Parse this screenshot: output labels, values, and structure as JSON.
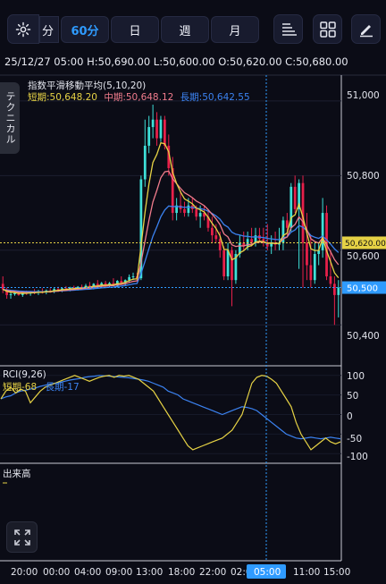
{
  "toolbar": {
    "timeframes": [
      {
        "label": "分",
        "selected": false
      },
      {
        "label": "60分",
        "selected": true
      },
      {
        "label": "日",
        "selected": false
      },
      {
        "label": "週",
        "selected": false
      },
      {
        "label": "月",
        "selected": false
      }
    ],
    "settings_icon": "gear-icon",
    "indicator_icon": "indicator-lines-icon",
    "layout_icon": "grid-layout-icon",
    "draw_icon": "pencil-icon"
  },
  "header": {
    "ohlc": "25/12/27 05:00  H:50,690.00  L:50,600.00  O:50,620.00  C:50,680.00"
  },
  "side_tab": {
    "label": "テクニカル"
  },
  "ma_panel": {
    "title": "指数平滑移動平均(5,10,20)",
    "short": "短期:50,648.20",
    "mid": "中期:50,648.12",
    "long": "長期:50,642.55"
  },
  "rci_panel": {
    "title": "RCI(9,26)",
    "short": "短期-68",
    "long": "長期-17"
  },
  "volume_panel": {
    "title": "出来高"
  },
  "colors": {
    "up": "#3ee0d8",
    "down": "#e8204a",
    "ema_short": "#e6d245",
    "ema_mid": "#f07c8c",
    "ema_long": "#3b82f0",
    "rci_short": "#e6d245",
    "rci_long": "#3b82f0",
    "price_line": "#e6d245",
    "crosshair": "#2f9bff"
  },
  "chart_data": {
    "type": "candlestick",
    "price_axis": {
      "labels": [
        "51,000",
        "50,800",
        "50,600",
        "50,400"
      ],
      "range": [
        50300,
        51050
      ]
    },
    "current_price_label": "50,620.00",
    "crosshair_price_label": "50,500",
    "rci_axis": {
      "labels": [
        "100",
        "50",
        "0",
        "-50",
        "-100"
      ],
      "range": [
        -120,
        120
      ]
    },
    "time_axis": [
      "20:00",
      "00:00",
      "04:00",
      "09:00",
      "13:00",
      "18:00",
      "22:00",
      "02:0",
      "05:00",
      "11:00",
      "15:00"
    ],
    "crosshair_time": "05:00",
    "candles": [
      [
        50510,
        50530,
        50485,
        50495
      ],
      [
        50495,
        50500,
        50470,
        50480
      ],
      [
        50480,
        50490,
        50470,
        50482
      ],
      [
        50482,
        50490,
        50478,
        50485
      ],
      [
        50485,
        50492,
        50478,
        50480
      ],
      [
        50480,
        50488,
        50475,
        50486
      ],
      [
        50486,
        50492,
        50480,
        50484
      ],
      [
        50484,
        50490,
        50478,
        50488
      ],
      [
        50488,
        50496,
        50482,
        50486
      ],
      [
        50486,
        50494,
        50480,
        50490
      ],
      [
        50490,
        50498,
        50484,
        50488
      ],
      [
        50488,
        50495,
        50482,
        50492
      ],
      [
        50492,
        50498,
        50486,
        50490
      ],
      [
        50490,
        50500,
        50485,
        50496
      ],
      [
        50496,
        50502,
        50488,
        50494
      ],
      [
        50494,
        50500,
        50488,
        50498
      ],
      [
        50498,
        50504,
        50492,
        50496
      ],
      [
        50496,
        50502,
        50490,
        50500
      ],
      [
        50500,
        50505,
        50494,
        50498
      ],
      [
        50498,
        50504,
        50492,
        50502
      ],
      [
        50502,
        50508,
        50496,
        50500
      ],
      [
        50500,
        50510,
        50495,
        50505
      ],
      [
        50505,
        50515,
        50498,
        50500
      ],
      [
        50500,
        50512,
        50495,
        50510
      ],
      [
        50510,
        50520,
        50500,
        50505
      ],
      [
        50505,
        50515,
        50500,
        50512
      ],
      [
        50512,
        50518,
        50502,
        50505
      ],
      [
        50505,
        50515,
        50500,
        50512
      ],
      [
        50512,
        50525,
        50505,
        50505
      ],
      [
        50505,
        50520,
        50500,
        50518
      ],
      [
        50518,
        50530,
        50510,
        50512
      ],
      [
        50512,
        50522,
        50505,
        50520
      ],
      [
        50520,
        50535,
        50512,
        50528
      ],
      [
        50528,
        50540,
        50520,
        50530
      ],
      [
        50530,
        50540,
        50520,
        50525
      ],
      [
        50525,
        50800,
        50520,
        50790
      ],
      [
        50790,
        50950,
        50770,
        50880
      ],
      [
        50880,
        50960,
        50860,
        50930
      ],
      [
        50930,
        50990,
        50900,
        50950
      ],
      [
        50950,
        50970,
        50880,
        50900
      ],
      [
        50900,
        50960,
        50890,
        50950
      ],
      [
        50950,
        50960,
        50870,
        50880
      ],
      [
        50880,
        50910,
        50800,
        50820
      ],
      [
        50820,
        50850,
        50680,
        50700
      ],
      [
        50700,
        50740,
        50680,
        50720
      ],
      [
        50720,
        50760,
        50700,
        50710
      ],
      [
        50710,
        50730,
        50690,
        50700
      ],
      [
        50700,
        50740,
        50690,
        50720
      ],
      [
        50720,
        50740,
        50700,
        50710
      ],
      [
        50710,
        50720,
        50680,
        50690
      ],
      [
        50690,
        50720,
        50660,
        50700
      ],
      [
        50700,
        50720,
        50680,
        50690
      ],
      [
        50690,
        50710,
        50650,
        50660
      ],
      [
        50660,
        50690,
        50620,
        50640
      ],
      [
        50640,
        50670,
        50620,
        50630
      ],
      [
        50630,
        50650,
        50580,
        50600
      ],
      [
        50600,
        50610,
        50520,
        50530
      ],
      [
        50530,
        50620,
        50520,
        50600
      ],
      [
        50600,
        50610,
        50450,
        50520
      ],
      [
        50520,
        50600,
        50510,
        50590
      ],
      [
        50590,
        50640,
        50580,
        50620
      ],
      [
        50620,
        50650,
        50600,
        50610
      ],
      [
        50610,
        50650,
        50600,
        50630
      ],
      [
        50630,
        50660,
        50610,
        50620
      ],
      [
        50620,
        50660,
        50610,
        50640
      ],
      [
        50640,
        50660,
        50620,
        50630
      ],
      [
        50630,
        50660,
        50610,
        50620
      ],
      [
        50620,
        50670,
        50600,
        50610
      ],
      [
        50610,
        50640,
        50590,
        50620
      ],
      [
        50620,
        50650,
        50600,
        50615
      ],
      [
        50615,
        50660,
        50600,
        50620
      ],
      [
        50620,
        50690,
        50600,
        50680
      ],
      [
        50680,
        50700,
        50640,
        50660
      ],
      [
        50660,
        50780,
        50650,
        50770
      ],
      [
        50770,
        50800,
        50700,
        50710
      ],
      [
        50710,
        50790,
        50550,
        50780
      ],
      [
        50780,
        50800,
        50500,
        50620
      ],
      [
        50620,
        50700,
        50520,
        50560
      ],
      [
        50560,
        50640,
        50500,
        50520
      ],
      [
        50520,
        50620,
        50510,
        50590
      ],
      [
        50590,
        50620,
        50560,
        50600
      ],
      [
        50600,
        50740,
        50580,
        50700
      ],
      [
        50700,
        50720,
        50520,
        50530
      ],
      [
        50530,
        50600,
        50500,
        50510
      ],
      [
        50510,
        50530,
        50400,
        50480
      ],
      [
        50480,
        50520,
        50420,
        50500
      ]
    ],
    "series": [
      {
        "name": "短期",
        "values": []
      },
      {
        "name": "中期",
        "values": []
      },
      {
        "name": "長期",
        "values": []
      }
    ],
    "rci_short": [
      40,
      60,
      70,
      55,
      65,
      60,
      30,
      45,
      60,
      70,
      75,
      80,
      85,
      90,
      95,
      100,
      95,
      90,
      85,
      90,
      95,
      98,
      100,
      95,
      100,
      98,
      100,
      95,
      90,
      80,
      70,
      60,
      40,
      20,
      0,
      -20,
      -40,
      -60,
      -80,
      -90,
      -85,
      -80,
      -75,
      -70,
      -65,
      -60,
      -50,
      -40,
      -20,
      0,
      40,
      80,
      95,
      100,
      98,
      90,
      80,
      60,
      40,
      20,
      -20,
      -50,
      -70,
      -90,
      -80,
      -70,
      -60,
      -70,
      -75,
      -70
    ],
    "rci_long": [
      40,
      45,
      48,
      55,
      60,
      62,
      65,
      68,
      72,
      75,
      78,
      80,
      82,
      85,
      88,
      90,
      92,
      95,
      97,
      98,
      100,
      99,
      98,
      97,
      96,
      95,
      94,
      92,
      90,
      88,
      85,
      80,
      75,
      70,
      60,
      55,
      50,
      40,
      35,
      30,
      25,
      20,
      15,
      10,
      5,
      0,
      5,
      10,
      15,
      20,
      18,
      15,
      10,
      0,
      -10,
      -20,
      -30,
      -40,
      -50,
      -55,
      -60,
      -62,
      -60,
      -58,
      -60,
      -62,
      -60,
      -58,
      -60,
      -62
    ]
  }
}
